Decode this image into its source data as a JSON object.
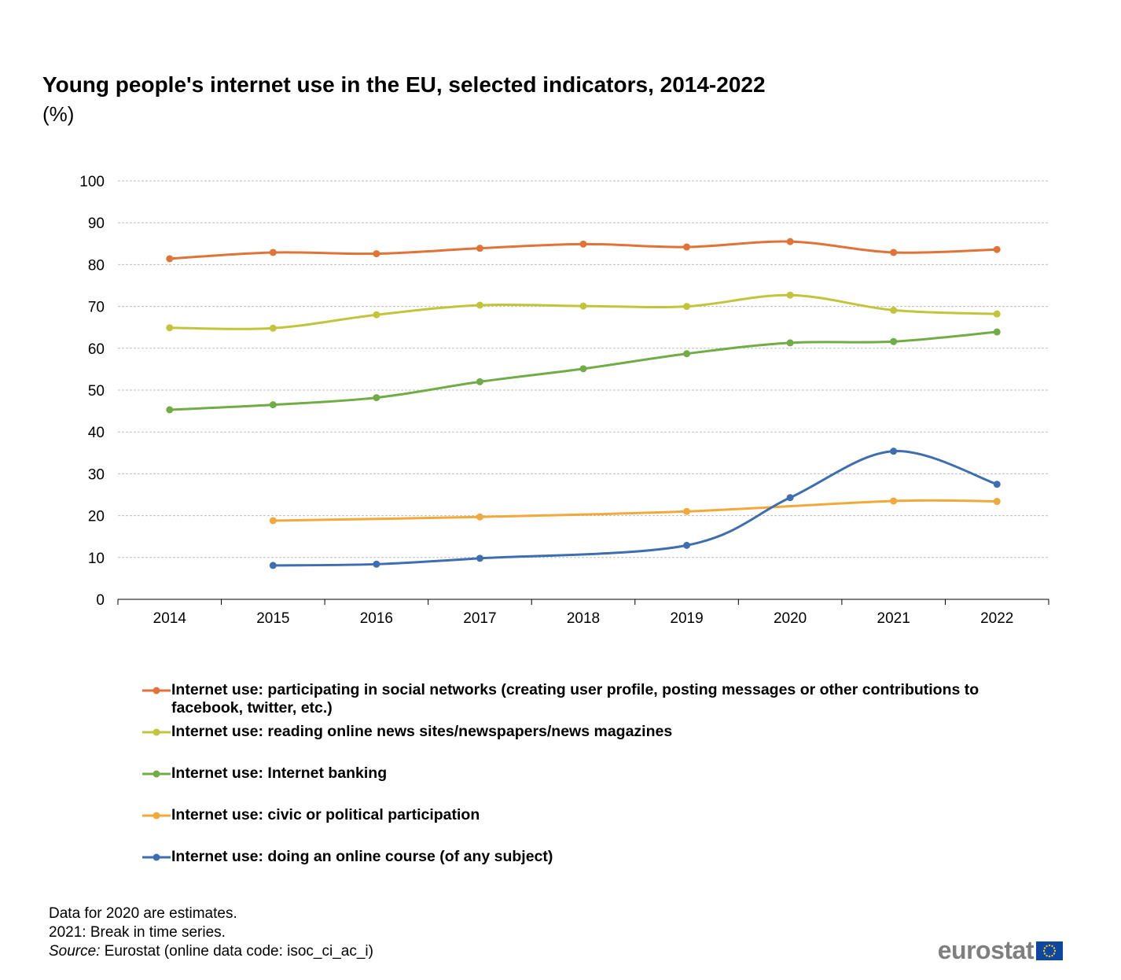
{
  "title": "Young people's internet use in the EU, selected indicators, 2014-2022",
  "subtitle": "(%)",
  "chart_data": {
    "type": "line",
    "title": "Young people's internet use in the EU, selected indicators, 2014-2022",
    "ylabel": "",
    "xlabel": "",
    "ylim": [
      0,
      100
    ],
    "yticks": [
      0,
      10,
      20,
      30,
      40,
      50,
      60,
      70,
      80,
      90,
      100
    ],
    "grid": true,
    "legend_position": "bottom",
    "categories": [
      "2014",
      "2015",
      "2016",
      "2017",
      "2018",
      "2019",
      "2020",
      "2021",
      "2022"
    ],
    "series": [
      {
        "name": "Internet use: participating in social networks (creating user profile, posting messages or other contributions to facebook, twitter, etc.)",
        "color": "#e07338",
        "values": [
          81.4,
          82.9,
          82.6,
          83.9,
          84.9,
          84.2,
          85.5,
          82.9,
          83.6
        ]
      },
      {
        "name": "Internet use: reading online news sites/newspapers/news magazines",
        "color": "#c2c53c",
        "values": [
          64.9,
          64.8,
          68.0,
          70.3,
          70.1,
          70.0,
          72.7,
          69.1,
          68.2
        ]
      },
      {
        "name": "Internet use: Internet banking",
        "color": "#71ad47",
        "values": [
          45.3,
          46.5,
          48.2,
          52.0,
          55.1,
          58.7,
          61.3,
          61.6,
          63.9
        ]
      },
      {
        "name": "Internet use: civic or political participation",
        "color": "#f2a93b",
        "values": [
          null,
          18.8,
          null,
          19.7,
          null,
          21.0,
          null,
          23.5,
          23.4
        ]
      },
      {
        "name": "Internet use: doing an online course (of any subject)",
        "color": "#3e6eb0",
        "values": [
          null,
          8.1,
          8.4,
          9.8,
          null,
          12.9,
          24.3,
          35.4,
          27.5
        ]
      }
    ]
  },
  "notes": {
    "line1": "Data for 2020 are estimates.",
    "line2": "2021: Break in time series.",
    "source_label": "Source:",
    "source_text": " Eurostat (online data code: isoc_ci_ac_i)"
  },
  "logo": {
    "text": "eurostat"
  }
}
